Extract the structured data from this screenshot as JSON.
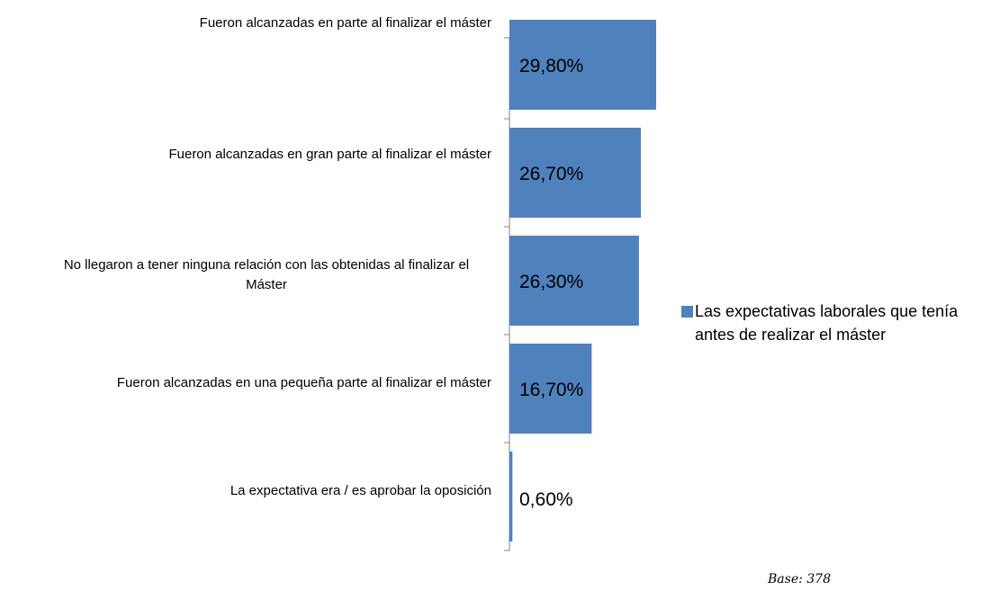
{
  "chart_data": {
    "type": "hbar",
    "categories": [
      "Fueron alcanzadas en parte al finalizar el máster",
      "Fueron alcanzadas en gran parte al finalizar el máster",
      "No llegaron  a tener ninguna relación con las obtenidas al finalizar el Máster",
      "Fueron alcanzadas en una pequeña parte al finalizar el máster",
      "La expectativa era / es aprobar la oposición"
    ],
    "series": [
      {
        "name": "Las expectativas laborales que tenía antes de realizar el máster",
        "color": "#4f81bd",
        "values": [
          29.8,
          26.7,
          26.3,
          16.7,
          0.6
        ],
        "value_labels": [
          "29,80%",
          "26,70%",
          "26,30%",
          "16,70%",
          "0,60%"
        ]
      }
    ],
    "legend": "right",
    "annotations": [
      "Base: 378"
    ]
  }
}
